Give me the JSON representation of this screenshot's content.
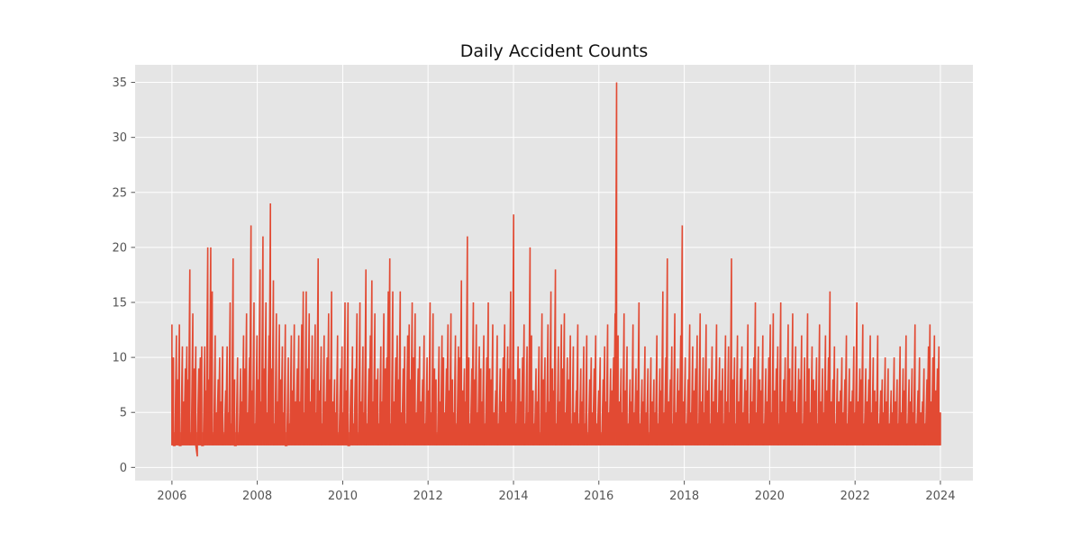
{
  "chart_data": {
    "type": "line",
    "title": "Daily Accident Counts",
    "xlabel": "",
    "ylabel": "",
    "x_range": [
      "2005-02-20",
      "2024-10-05"
    ],
    "ylim": [
      -1.2,
      36.6
    ],
    "x_ticks": [
      "2006",
      "2008",
      "2010",
      "2012",
      "2014",
      "2016",
      "2018",
      "2020",
      "2022",
      "2024"
    ],
    "y_ticks": [
      0,
      5,
      10,
      15,
      20,
      25,
      30,
      35
    ],
    "grid": true,
    "legend": "none",
    "colors": {
      "series": "#E24A33",
      "plot_background": "#E5E5E5",
      "grid": "#FFFFFF"
    },
    "series": [
      {
        "date_start": "2006-01-01",
        "date_end": "2024-01-01",
        "resolution": "daily counts, approximate reconstruction (one value per 10 days)",
        "baseline_floor": 2,
        "values": [
          13,
          10,
          2,
          12,
          8,
          13,
          2,
          11,
          6,
          9,
          11,
          8,
          18,
          3,
          14,
          9,
          11,
          1,
          9,
          10,
          11,
          2,
          11,
          7,
          20,
          8,
          20,
          16,
          3,
          12,
          5,
          8,
          10,
          6,
          11,
          3,
          7,
          11,
          5,
          15,
          4,
          19,
          8,
          2,
          10,
          3,
          9,
          6,
          12,
          9,
          14,
          5,
          10,
          22,
          7,
          15,
          4,
          12,
          8,
          18,
          6,
          21,
          9,
          15,
          5,
          12,
          24,
          9,
          17,
          4,
          14,
          6,
          13,
          8,
          11,
          5,
          13,
          2,
          10,
          4,
          12,
          7,
          13,
          6,
          9,
          12,
          6,
          13,
          16,
          5,
          16,
          9,
          14,
          6,
          12,
          8,
          13,
          5,
          19,
          7,
          11,
          4,
          12,
          6,
          10,
          14,
          8,
          16,
          6,
          8,
          5,
          12,
          3,
          9,
          11,
          5,
          15,
          7,
          15,
          2,
          8,
          11,
          4,
          9,
          14,
          3,
          15,
          6,
          11,
          5,
          18,
          4,
          9,
          12,
          17,
          6,
          14,
          8,
          9,
          4,
          11,
          6,
          14,
          9,
          10,
          16,
          19,
          4,
          16,
          6,
          10,
          12,
          8,
          16,
          5,
          9,
          11,
          4,
          12,
          13,
          8,
          15,
          10,
          14,
          5,
          9,
          11,
          6,
          8,
          12,
          4,
          10,
          7,
          15,
          5,
          14,
          9,
          8,
          3,
          11,
          6,
          12,
          10,
          5,
          9,
          13,
          7,
          14,
          8,
          5,
          12,
          4,
          11,
          10,
          17,
          7,
          9,
          6,
          21,
          10,
          4,
          9,
          15,
          8,
          13,
          5,
          11,
          9,
          6,
          12,
          4,
          10,
          15,
          9,
          8,
          13,
          5,
          7,
          12,
          4,
          9,
          6,
          10,
          13,
          5,
          11,
          9,
          16,
          6,
          23,
          8,
          4,
          11,
          9,
          6,
          10,
          13,
          4,
          11,
          5,
          20,
          12,
          7,
          4,
          9,
          6,
          11,
          3,
          14,
          8,
          10,
          5,
          13,
          6,
          16,
          9,
          7,
          18,
          4,
          11,
          6,
          13,
          9,
          14,
          5,
          10,
          8,
          12,
          4,
          11,
          5,
          7,
          13,
          4,
          9,
          6,
          11,
          4,
          12,
          3,
          8,
          10,
          5,
          9,
          12,
          4,
          7,
          10,
          3,
          8,
          11,
          6,
          13,
          5,
          9,
          7,
          10,
          14,
          35,
          12,
          6,
          9,
          5,
          14,
          7,
          11,
          4,
          8,
          6,
          13,
          5,
          9,
          7,
          15,
          4,
          8,
          6,
          11,
          5,
          9,
          3,
          10,
          6,
          8,
          5,
          12,
          4,
          9,
          7,
          16,
          5,
          10,
          19,
          6,
          8,
          11,
          4,
          14,
          5,
          9,
          7,
          12,
          22,
          6,
          10,
          4,
          8,
          13,
          5,
          11,
          7,
          9,
          12,
          4,
          14,
          6,
          10,
          5,
          13,
          7,
          9,
          4,
          11,
          6,
          8,
          13,
          5,
          10,
          7,
          9,
          4,
          12,
          6,
          11,
          5,
          19,
          8,
          10,
          4,
          12,
          6,
          9,
          11,
          5,
          8,
          7,
          13,
          4,
          9,
          6,
          10,
          15,
          5,
          11,
          8,
          7,
          12,
          4,
          9,
          6,
          10,
          13,
          5,
          14,
          7,
          9,
          11,
          4,
          15,
          6,
          8,
          10,
          5,
          13,
          9,
          7,
          14,
          6,
          11,
          5,
          9,
          8,
          12,
          4,
          10,
          6,
          14,
          9,
          5,
          11,
          8,
          7,
          10,
          4,
          13,
          6,
          9,
          5,
          12,
          7,
          10,
          16,
          6,
          8,
          11,
          4,
          9,
          6,
          7,
          10,
          5,
          8,
          12,
          4,
          9,
          6,
          7,
          11,
          5,
          15,
          6,
          9,
          8,
          13,
          4,
          9,
          6,
          8,
          12,
          5,
          10,
          7,
          6,
          12,
          4,
          7,
          8,
          5,
          10,
          6,
          9,
          4,
          7,
          5,
          10,
          6,
          8,
          4,
          11,
          5,
          9,
          7,
          12,
          4,
          8,
          6,
          9,
          5,
          13,
          4,
          7,
          10,
          5,
          6,
          9,
          4,
          8,
          11,
          13,
          6,
          10,
          12,
          7,
          9,
          11,
          5
        ]
      }
    ]
  }
}
